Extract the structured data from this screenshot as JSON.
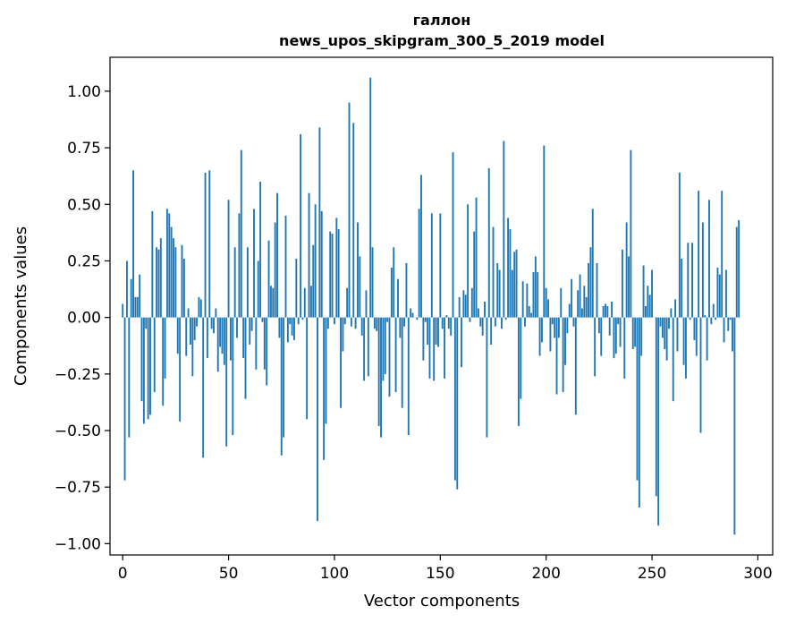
{
  "chart_data": {
    "type": "bar",
    "title": "галлон",
    "subtitle": "news_upos_skipgram_300_5_2019 model",
    "xlabel": "Vector components",
    "ylabel": "Components values",
    "xlim": [
      -6,
      307
    ],
    "ylim": [
      -1.05,
      1.15
    ],
    "xticks": [
      0,
      50,
      100,
      150,
      200,
      250,
      300
    ],
    "yticks": [
      -1.0,
      -0.75,
      -0.5,
      -0.25,
      0.0,
      0.25,
      0.5,
      0.75,
      1.0
    ],
    "ytick_labels": [
      "−1.00",
      "−0.75",
      "−0.50",
      "−0.25",
      "0.00",
      "0.25",
      "0.50",
      "0.75",
      "1.00"
    ],
    "bar_color": "#1f77b4",
    "x": "0..299",
    "values": [
      0.06,
      -0.72,
      0.25,
      -0.53,
      0.17,
      0.65,
      0.09,
      0.09,
      0.19,
      -0.37,
      -0.47,
      -0.05,
      -0.45,
      -0.43,
      0.47,
      -0.33,
      0.31,
      0.3,
      0.35,
      -0.39,
      -0.27,
      0.48,
      0.46,
      0.4,
      0.35,
      0.31,
      -0.16,
      -0.46,
      0.32,
      0.26,
      -0.17,
      0.04,
      -0.12,
      -0.26,
      -0.1,
      -0.04,
      0.09,
      0.08,
      -0.62,
      0.64,
      -0.18,
      0.65,
      -0.05,
      -0.07,
      0.04,
      -0.24,
      -0.13,
      -0.16,
      -0.21,
      -0.57,
      0.52,
      -0.19,
      -0.52,
      0.31,
      -0.09,
      0.46,
      0.74,
      -0.18,
      -0.36,
      0.31,
      -0.12,
      -0.06,
      0.48,
      -0.23,
      0.25,
      0.6,
      -0.02,
      -0.23,
      -0.3,
      0.34,
      0.14,
      0.13,
      0.42,
      0.55,
      -0.09,
      -0.61,
      -0.53,
      0.45,
      -0.11,
      -0.03,
      -0.08,
      -0.1,
      0.26,
      -0.03,
      0.81,
      -0.01,
      0.13,
      -0.45,
      0.55,
      0.14,
      0.32,
      0.5,
      -0.9,
      0.84,
      0.47,
      -0.63,
      -0.47,
      -0.05,
      0.38,
      0.37,
      -0.03,
      0.44,
      0.39,
      -0.4,
      -0.15,
      -0.03,
      0.13,
      0.95,
      -0.04,
      0.86,
      -0.05,
      0.42,
      0.27,
      -0.08,
      -0.28,
      0.12,
      -0.26,
      1.06,
      0.31,
      -0.05,
      -0.06,
      -0.48,
      -0.53,
      -0.28,
      -0.25,
      -0.02,
      -0.35,
      0.22,
      0.31,
      -0.33,
      0.17,
      -0.09,
      -0.4,
      -0.04,
      0.24,
      -0.52,
      0.04,
      0.02,
      0.0,
      -0.01,
      0.48,
      0.63,
      -0.19,
      -0.02,
      -0.12,
      -0.27,
      0.46,
      -0.28,
      -0.12,
      -0.13,
      0.46,
      -0.05,
      -0.27,
      0.01,
      -0.05,
      -0.08,
      0.73,
      -0.72,
      -0.76,
      0.09,
      -0.22,
      0.12,
      0.1,
      0.5,
      -0.02,
      0.13,
      0.38,
      0.53,
      0.04,
      -0.04,
      -0.08,
      0.07,
      -0.53,
      0.66,
      -0.12,
      0.4,
      -0.04,
      0.24,
      0.21,
      -0.05,
      0.78,
      -0.01,
      0.44,
      0.39,
      0.21,
      0.29,
      0.3,
      -0.48,
      -0.36,
      0.16,
      -0.04,
      0.15,
      0.05,
      0.02,
      0.2,
      0.27,
      0.2,
      -0.17,
      -0.11,
      0.76,
      0.13,
      0.08,
      -0.15,
      -0.03,
      -0.09,
      -0.34,
      -0.09,
      0.13,
      -0.33,
      -0.21,
      -0.07,
      0.06,
      0.17,
      -0.04,
      -0.43,
      0.12,
      0.19,
      0.04,
      0.14,
      0.09,
      0.24,
      0.31,
      0.48,
      -0.26,
      0.24,
      -0.07,
      -0.17,
      0.05,
      0.06,
      0.05,
      -0.08,
      0.07,
      -0.18,
      -0.16,
      -0.03,
      -0.13,
      0.3,
      -0.27,
      0.42,
      0.27,
      0.74,
      -0.14,
      -0.13,
      -0.72,
      -0.84,
      -0.17,
      0.23,
      0.05,
      0.14,
      0.1,
      0.21,
      0.0,
      -0.79,
      -0.92,
      -0.04,
      -0.09,
      -0.14,
      -0.19,
      -0.05,
      0.04,
      -0.37,
      0.08,
      -0.15,
      0.64,
      0.26,
      -0.21,
      -0.27,
      0.33,
      -0.01,
      0.33,
      -0.1,
      -0.17,
      0.56,
      -0.51,
      0.42,
      0.01,
      -0.19,
      0.52,
      -0.03,
      0.06,
      -0.01,
      0.22,
      0.19,
      0.56,
      -0.11,
      0.21,
      -0.06,
      -0.01,
      -0.15,
      -0.96,
      0.4,
      0.43
    ]
  }
}
